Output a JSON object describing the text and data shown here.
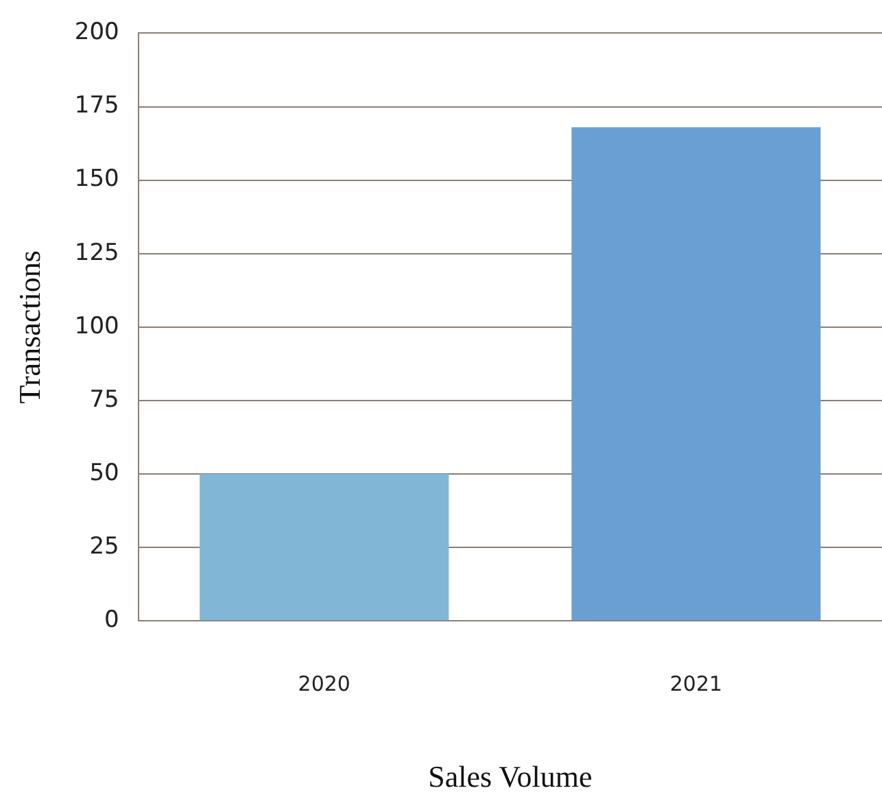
{
  "chart_data": {
    "type": "bar",
    "xlabel": "Sales Volume",
    "ylabel": "Transactions",
    "categories": [
      "2020",
      "2021"
    ],
    "values": [
      50,
      168
    ],
    "colors": [
      "#82b6d7",
      "#6a9fd4"
    ],
    "ylim": [
      0,
      200
    ],
    "yticks": [
      0,
      25,
      50,
      75,
      100,
      125,
      150,
      175,
      200
    ],
    "grid": "y",
    "legend": false
  }
}
